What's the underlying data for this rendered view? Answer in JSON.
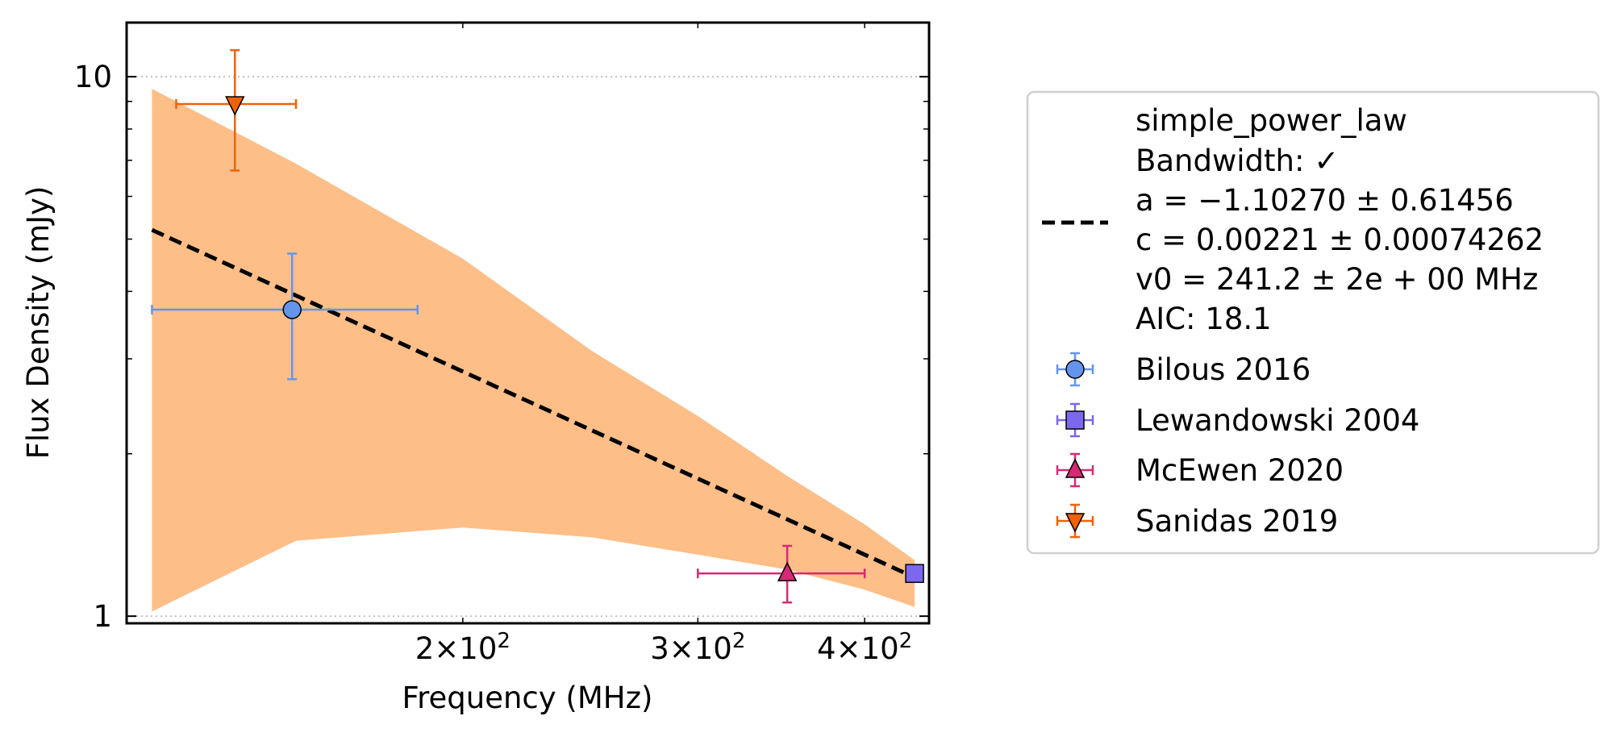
{
  "chart_data": {
    "type": "scatter",
    "xlabel": "Frequency (MHz)",
    "ylabel": "Flux Density (mJy)",
    "xscale": "log",
    "yscale": "log",
    "xlim": [
      112,
      447
    ],
    "ylim": [
      0.97,
      12.6
    ],
    "grid": "horizontal dotted at major y ticks",
    "legend_placement": "outside right",
    "x_ticks": [
      {
        "value": 200,
        "base": "2",
        "exp": "2"
      },
      {
        "value": 300,
        "base": "3",
        "exp": "2"
      },
      {
        "value": 400,
        "base": "4",
        "exp": "2"
      }
    ],
    "y_ticks": [
      {
        "value": 1,
        "label": "1"
      },
      {
        "value": 10,
        "label": "10"
      }
    ],
    "fit": {
      "name": "simple_power_law",
      "bandwidth_label": "Bandwidth: ✓",
      "a_label": "a = −1.10270 ± 0.61456",
      "c_label": "c = 0.00221 ± 0.00074262",
      "v0_label": "v0 = 241.2 ± 2e + 00 MHz",
      "aic_label": "AIC: 18.1",
      "line_color": "#000000",
      "band_color": "#fdbe87",
      "a": -1.1027,
      "c": 2.21,
      "v0": 241.2,
      "curve": [
        {
          "x": 117,
          "y": 5.2,
          "lower": 1.02,
          "upper": 9.5
        },
        {
          "x": 150,
          "y": 3.95,
          "lower": 1.38,
          "upper": 6.9
        },
        {
          "x": 200,
          "y": 2.7,
          "lower": 1.46,
          "upper": 4.6
        },
        {
          "x": 250,
          "y": 2.14,
          "lower": 1.4,
          "upper": 3.1
        },
        {
          "x": 300,
          "y": 1.75,
          "lower": 1.3,
          "upper": 2.35
        },
        {
          "x": 350,
          "y": 1.47,
          "lower": 1.22,
          "upper": 1.82
        },
        {
          "x": 400,
          "y": 1.29,
          "lower": 1.12,
          "upper": 1.48
        },
        {
          "x": 436,
          "y": 1.18,
          "lower": 1.04,
          "upper": 1.27
        }
      ]
    },
    "series": [
      {
        "name": "Bilous 2016",
        "marker": "circle",
        "color": "#6495ed",
        "points": [
          {
            "x": 149,
            "xerr_low": 117,
            "xerr_high": 185,
            "y": 3.7,
            "yerr_low": 2.75,
            "yerr_high": 4.7
          }
        ]
      },
      {
        "name": "Lewandowski 2004",
        "marker": "square",
        "color": "#7b68ee",
        "points": [
          {
            "x": 436,
            "xerr_low": 433,
            "xerr_high": 439,
            "y": 1.2,
            "yerr_low": 1.16,
            "yerr_high": 1.24
          }
        ]
      },
      {
        "name": "McEwen 2020",
        "marker": "triangle-up",
        "color": "#d62a75",
        "points": [
          {
            "x": 350,
            "xerr_low": 300,
            "xerr_high": 400,
            "y": 1.2,
            "yerr_low": 1.06,
            "yerr_high": 1.35
          }
        ]
      },
      {
        "name": "Sanidas 2019",
        "marker": "triangle-down",
        "color": "#f0620a",
        "points": [
          {
            "x": 135,
            "xerr_low": 122,
            "xerr_high": 150,
            "y": 8.9,
            "yerr_low": 6.7,
            "yerr_high": 11.2
          }
        ]
      }
    ]
  }
}
